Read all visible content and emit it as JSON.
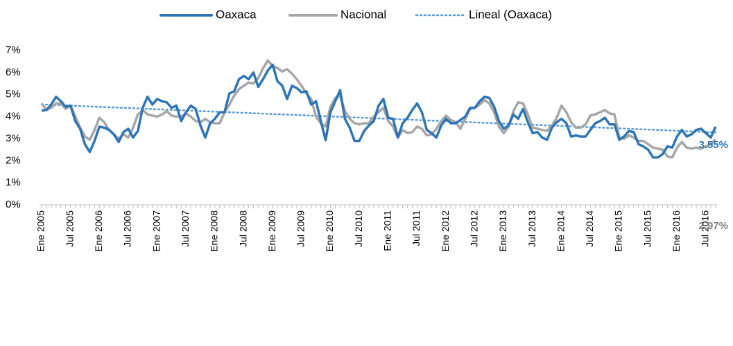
{
  "chart_data": {
    "type": "line",
    "categories": [
      "Ene 2005",
      null,
      null,
      null,
      null,
      null,
      "Jul 2005",
      null,
      null,
      null,
      null,
      null,
      "Ene 2006",
      null,
      null,
      null,
      null,
      null,
      "Jul 2006",
      null,
      null,
      null,
      null,
      null,
      "Ene 2007",
      null,
      null,
      null,
      null,
      null,
      "Jul 2007",
      null,
      null,
      null,
      null,
      null,
      "Ene 2008",
      null,
      null,
      null,
      null,
      null,
      "Jul 2008",
      null,
      null,
      null,
      null,
      null,
      "Ene 2009",
      null,
      null,
      null,
      null,
      null,
      "Jul 2009",
      null,
      null,
      null,
      null,
      null,
      "Ene 2010",
      null,
      null,
      null,
      null,
      null,
      "Jul 2010",
      null,
      null,
      null,
      null,
      null,
      "Ene 2011",
      null,
      null,
      null,
      null,
      null,
      "Jul 2011",
      null,
      null,
      null,
      null,
      null,
      "Ene 2012",
      null,
      null,
      null,
      null,
      null,
      "Jul 2012",
      null,
      null,
      null,
      null,
      null,
      "Ene 2013",
      null,
      null,
      null,
      null,
      null,
      "Jul 2013",
      null,
      null,
      null,
      null,
      null,
      "Ene 2014",
      null,
      null,
      null,
      null,
      null,
      "Jul 2014",
      null,
      null,
      null,
      null,
      null,
      "Ene 2015",
      null,
      null,
      null,
      null,
      null,
      "Jul 2015",
      null,
      null,
      null,
      null,
      null,
      "Ene 2016",
      null,
      null,
      null,
      null,
      null,
      "Jul 2016",
      null,
      null
    ],
    "series": [
      {
        "name": "Oaxaca",
        "color": "#2e75b6",
        "end_label": "3.55%",
        "values": [
          4.27,
          4.3,
          4.55,
          4.9,
          4.7,
          4.45,
          4.5,
          3.8,
          3.45,
          2.75,
          2.4,
          2.9,
          3.55,
          3.5,
          3.4,
          3.2,
          2.85,
          3.3,
          3.45,
          3.05,
          3.35,
          4.4,
          4.9,
          4.55,
          4.8,
          4.7,
          4.65,
          4.4,
          4.5,
          3.8,
          4.2,
          4.5,
          4.35,
          3.6,
          3.05,
          3.7,
          3.9,
          4.2,
          4.2,
          5.05,
          5.15,
          5.7,
          5.85,
          5.7,
          6.0,
          5.35,
          5.7,
          6.1,
          6.35,
          5.6,
          5.4,
          4.8,
          5.4,
          5.3,
          5.1,
          5.15,
          4.55,
          4.7,
          3.8,
          2.93,
          4.2,
          4.7,
          5.2,
          3.9,
          3.5,
          2.9,
          2.9,
          3.35,
          3.6,
          3.8,
          4.5,
          4.8,
          3.95,
          3.9,
          3.05,
          3.7,
          3.95,
          4.3,
          4.6,
          4.2,
          3.4,
          3.25,
          3.05,
          3.6,
          3.9,
          3.7,
          3.7,
          3.85,
          4.0,
          4.4,
          4.4,
          4.7,
          4.9,
          4.85,
          4.45,
          3.8,
          3.45,
          3.6,
          4.1,
          3.9,
          4.35,
          3.75,
          3.25,
          3.3,
          3.05,
          2.95,
          3.5,
          3.75,
          3.9,
          3.7,
          3.1,
          3.15,
          3.1,
          3.1,
          3.4,
          3.7,
          3.8,
          3.95,
          3.65,
          3.65,
          2.95,
          3.1,
          3.35,
          3.3,
          2.75,
          2.65,
          2.5,
          2.15,
          2.15,
          2.3,
          2.65,
          2.6,
          3.1,
          3.4,
          3.1,
          3.2,
          3.4,
          3.45,
          3.25,
          3.05,
          3.55
        ]
      },
      {
        "name": "Nacional",
        "color": "#a6a6a6",
        "end_label": "2.97%",
        "values": [
          4.6,
          4.3,
          4.4,
          4.6,
          4.6,
          4.35,
          4.5,
          4.0,
          3.5,
          3.1,
          2.95,
          3.4,
          3.95,
          3.75,
          3.4,
          3.2,
          3.0,
          3.2,
          3.05,
          3.5,
          4.1,
          4.3,
          4.1,
          4.05,
          4.0,
          4.1,
          4.25,
          4.05,
          4.0,
          4.0,
          4.15,
          4.0,
          3.8,
          3.75,
          3.9,
          3.75,
          3.7,
          3.7,
          4.2,
          4.55,
          4.95,
          5.25,
          5.4,
          5.55,
          5.5,
          5.75,
          6.2,
          6.55,
          6.3,
          6.2,
          6.05,
          6.15,
          5.95,
          5.7,
          5.4,
          5.05,
          4.8,
          4.0,
          3.7,
          3.55,
          4.45,
          4.85,
          4.95,
          4.25,
          3.9,
          3.7,
          3.65,
          3.7,
          3.7,
          4.0,
          4.2,
          4.4,
          3.8,
          3.55,
          3.05,
          3.4,
          3.25,
          3.3,
          3.55,
          3.45,
          3.15,
          3.2,
          3.45,
          3.8,
          4.05,
          3.85,
          3.75,
          3.45,
          3.9,
          4.35,
          4.4,
          4.55,
          4.75,
          4.6,
          4.2,
          3.55,
          3.25,
          3.55,
          4.25,
          4.65,
          4.6,
          4.1,
          3.5,
          3.45,
          3.4,
          3.35,
          3.6,
          3.95,
          4.5,
          4.2,
          3.75,
          3.5,
          3.5,
          3.65,
          4.05,
          4.1,
          4.2,
          4.3,
          4.15,
          4.1,
          3.05,
          3.0,
          3.15,
          3.05,
          2.9,
          2.9,
          2.75,
          2.6,
          2.55,
          2.5,
          2.2,
          2.15,
          2.6,
          2.85,
          2.6,
          2.55,
          2.6,
          2.55,
          2.65,
          2.75,
          2.97
        ]
      }
    ],
    "trendline": {
      "name": "Lineal (Oaxaca)",
      "color": "#5b9bd5",
      "of_series": 0
    },
    "ylim": [
      0,
      7
    ],
    "yticks": [
      {
        "value": 0,
        "label": "0%"
      },
      {
        "value": 1,
        "label": "1%"
      },
      {
        "value": 2,
        "label": "2%"
      },
      {
        "value": 3,
        "label": "3%"
      },
      {
        "value": 4,
        "label": "4%"
      },
      {
        "value": 5,
        "label": "5%"
      },
      {
        "value": 6,
        "label": "6%"
      },
      {
        "value": 7,
        "label": "7%"
      }
    ],
    "grid": false
  }
}
